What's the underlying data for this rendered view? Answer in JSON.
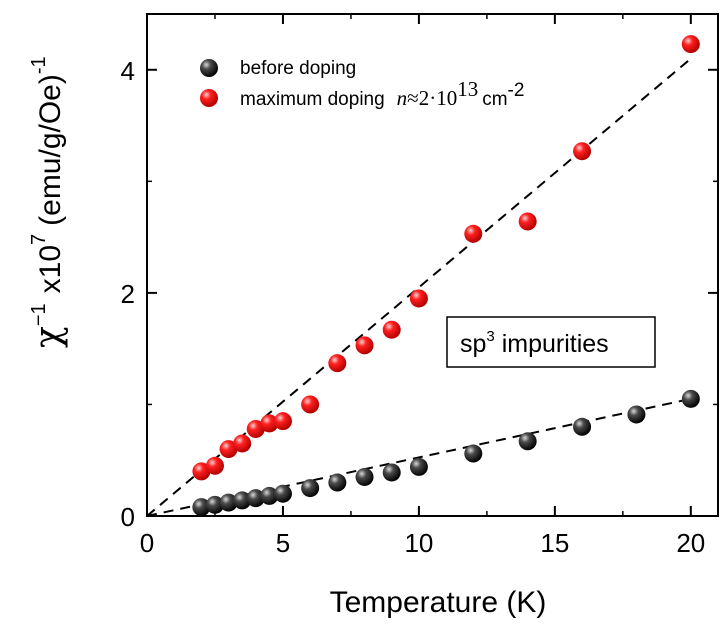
{
  "chart_data": {
    "type": "scatter",
    "title": "",
    "xlabel": "Temperature (K)",
    "ylabel": {
      "chi": "χ",
      "chi_exp": "−1",
      "mult": "x10",
      "mult_exp": "7",
      "units": "(emu/g/Oe)",
      "units_exp": "-1"
    },
    "xlim": [
      0,
      21
    ],
    "ylim": [
      0,
      4.5
    ],
    "xticks": [
      0,
      5,
      10,
      15,
      20
    ],
    "yticks": [
      0,
      2,
      4
    ],
    "legend_position": "top-left",
    "series": [
      {
        "name": "before doping",
        "color": "#1a1a1a",
        "x": [
          2,
          2.5,
          3,
          3.5,
          4,
          4.5,
          5,
          6,
          7,
          8,
          9,
          10,
          12,
          14,
          16,
          18,
          20
        ],
        "y": [
          0.08,
          0.1,
          0.12,
          0.14,
          0.16,
          0.18,
          0.2,
          0.25,
          0.3,
          0.35,
          0.39,
          0.44,
          0.56,
          0.67,
          0.8,
          0.91,
          1.05
        ]
      },
      {
        "name": "maximum doping",
        "color": "#e00000",
        "x": [
          2,
          2.5,
          3,
          3.5,
          4,
          4.5,
          5,
          6,
          7,
          8,
          9,
          10,
          12,
          14,
          16,
          20
        ],
        "y": [
          0.4,
          0.45,
          0.6,
          0.65,
          0.78,
          0.83,
          0.85,
          1.0,
          1.37,
          1.53,
          1.67,
          1.95,
          2.53,
          2.64,
          3.27,
          4.23
        ]
      }
    ],
    "fit_lines": [
      {
        "series": "before doping",
        "from": [
          0,
          0
        ],
        "to": [
          20,
          1.05
        ]
      },
      {
        "series": "maximum doping",
        "from": [
          0,
          0
        ],
        "to": [
          20,
          4.1
        ]
      }
    ],
    "legend_math": {
      "var": "n",
      "approx": "≈",
      "coeff": "2·10",
      "coeff_exp": "13",
      "unit": "cm",
      "unit_exp": "-2"
    },
    "annotation": {
      "base": "sp",
      "sup": "3",
      "rest": " impurities"
    }
  }
}
